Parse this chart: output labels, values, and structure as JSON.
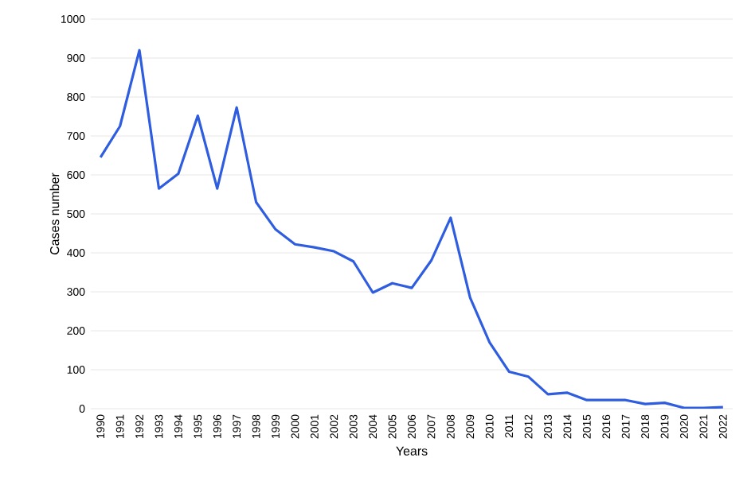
{
  "chart_data": {
    "type": "line",
    "xlabel": "Years",
    "ylabel": "Cases number",
    "categories": [
      "1990",
      "1991",
      "1992",
      "1993",
      "1994",
      "1995",
      "1996",
      "1997",
      "1998",
      "1999",
      "2000",
      "2001",
      "2002",
      "2003",
      "2004",
      "2005",
      "2006",
      "2007",
      "2008",
      "2009",
      "2010",
      "2011",
      "2012",
      "2013",
      "2014",
      "2015",
      "2016",
      "2017",
      "2018",
      "2019",
      "2020",
      "2021",
      "2022"
    ],
    "series": [
      {
        "color": "#2f5de0",
        "values": [
          645,
          725,
          920,
          565,
          603,
          752,
          565,
          773,
          530,
          460,
          422,
          414,
          404,
          378,
          298,
          322,
          310,
          380,
          490,
          285,
          170,
          95,
          82,
          37,
          41,
          22,
          22,
          22,
          12,
          15,
          2,
          2,
          4
        ]
      }
    ],
    "ylim": [
      0,
      1000
    ],
    "yticks": [
      0,
      100,
      200,
      300,
      400,
      500,
      600,
      700,
      800,
      900,
      1000
    ],
    "grid": "y",
    "marker": "none",
    "line_style": "solid"
  }
}
